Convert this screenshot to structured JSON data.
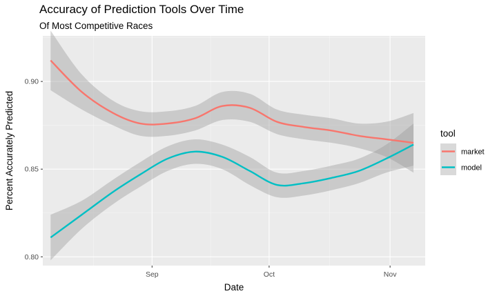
{
  "title": "Accuracy of Prediction Tools Over Time",
  "subtitle": "Of Most Competitive Races",
  "chart_data": {
    "type": "line",
    "title": "Accuracy of Prediction Tools Over Time",
    "subtitle": "Of Most Competitive Races",
    "xlabel": "Date",
    "ylabel": "Percent Accurately Predicted",
    "x_type": "date",
    "xlim": [
      "2018-08-04",
      "2018-11-10"
    ],
    "ylim": [
      0.795,
      0.926
    ],
    "x_ticks": [
      {
        "date": "2018-09-01",
        "label": "Sep"
      },
      {
        "date": "2018-10-01",
        "label": "Oct"
      },
      {
        "date": "2018-11-01",
        "label": "Nov"
      }
    ],
    "y_ticks": [
      0.8,
      0.85,
      0.9
    ],
    "y_tick_labels": [
      "0.80",
      "0.85",
      "0.90"
    ],
    "grid": true,
    "legend": {
      "title": "tool",
      "position": "right"
    },
    "series": [
      {
        "name": "market",
        "color": "#F8766D",
        "x": [
          "2018-08-06",
          "2018-08-14",
          "2018-08-22",
          "2018-08-29",
          "2018-09-05",
          "2018-09-12",
          "2018-09-19",
          "2018-09-26",
          "2018-10-03",
          "2018-10-10",
          "2018-10-17",
          "2018-10-24",
          "2018-10-31",
          "2018-11-07"
        ],
        "y": [
          0.912,
          0.894,
          0.882,
          0.876,
          0.876,
          0.879,
          0.886,
          0.885,
          0.877,
          0.874,
          0.872,
          0.869,
          0.867,
          0.865
        ],
        "ci_lower": [
          0.895,
          0.884,
          0.875,
          0.869,
          0.869,
          0.872,
          0.878,
          0.877,
          0.87,
          0.867,
          0.865,
          0.862,
          0.857,
          0.848
        ],
        "ci_upper": [
          0.929,
          0.904,
          0.889,
          0.883,
          0.883,
          0.886,
          0.894,
          0.893,
          0.884,
          0.881,
          0.879,
          0.876,
          0.877,
          0.882
        ]
      },
      {
        "name": "model",
        "color": "#00BFC4",
        "x": [
          "2018-08-06",
          "2018-08-14",
          "2018-08-22",
          "2018-08-29",
          "2018-09-05",
          "2018-09-12",
          "2018-09-19",
          "2018-09-26",
          "2018-10-03",
          "2018-10-10",
          "2018-10-17",
          "2018-10-24",
          "2018-10-31",
          "2018-11-07"
        ],
        "y": [
          0.811,
          0.824,
          0.837,
          0.847,
          0.856,
          0.86,
          0.857,
          0.849,
          0.841,
          0.842,
          0.845,
          0.849,
          0.856,
          0.864
        ],
        "ci_lower": [
          0.798,
          0.816,
          0.83,
          0.84,
          0.849,
          0.853,
          0.85,
          0.841,
          0.834,
          0.835,
          0.838,
          0.842,
          0.848,
          0.852
        ],
        "ci_upper": [
          0.824,
          0.832,
          0.844,
          0.854,
          0.863,
          0.867,
          0.864,
          0.857,
          0.848,
          0.849,
          0.852,
          0.856,
          0.864,
          0.876
        ]
      }
    ]
  }
}
